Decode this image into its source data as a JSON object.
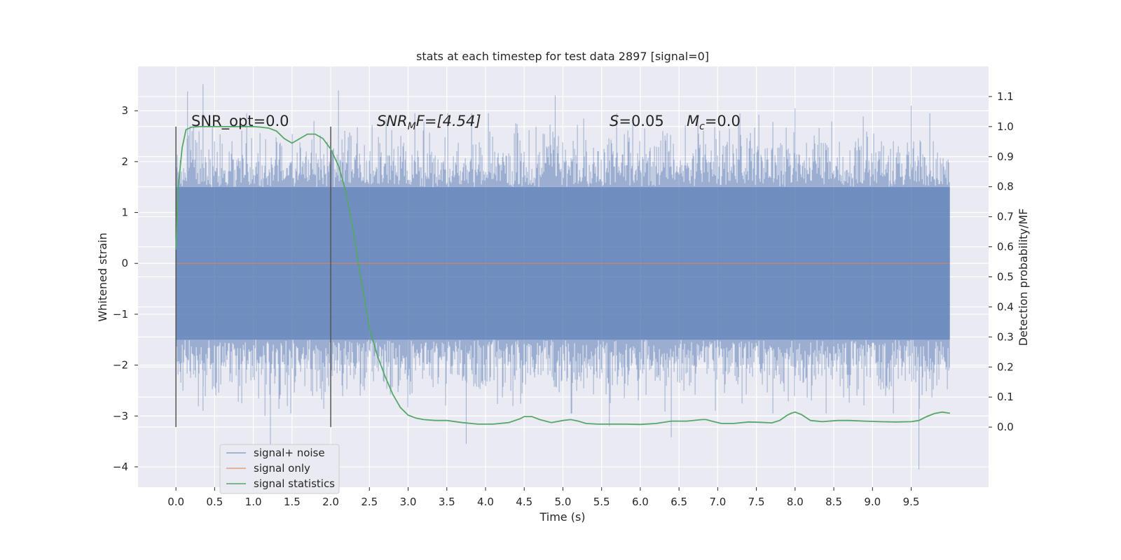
{
  "chart_data": {
    "type": "line",
    "title": "stats at each timestep for test data 2897 [signal=0]",
    "xlabel": "Time (s)",
    "ylabel_left": "Whitened strain",
    "ylabel_right": "Detection probability/MF",
    "x_ticks": [
      "0.0",
      "0.5",
      "1.0",
      "1.5",
      "2.0",
      "2.5",
      "3.0",
      "3.5",
      "4.0",
      "4.5",
      "5.0",
      "5.5",
      "6.0",
      "6.5",
      "7.0",
      "7.5",
      "8.0",
      "8.5",
      "9.0",
      "9.5"
    ],
    "y_left_ticks": [
      3,
      2,
      1,
      0,
      -1,
      -2,
      -3,
      -4
    ],
    "y_left_tick_labels": [
      "3",
      "2",
      "1",
      "0",
      "−1",
      "−2",
      "−3",
      "−4"
    ],
    "y_right_ticks": [
      1.1,
      1.0,
      0.9,
      0.8,
      0.7,
      0.6,
      0.5,
      0.4,
      0.3,
      0.2,
      0.1,
      0.0
    ],
    "y_right_tick_labels": [
      "1.1",
      "1.0",
      "0.9",
      "0.8",
      "0.7",
      "0.6",
      "0.5",
      "0.4",
      "0.3",
      "0.2",
      "0.1",
      "0.0"
    ],
    "xlim": [
      -0.49,
      10.5
    ],
    "ylim_left": [
      -4.4,
      3.87
    ],
    "ylim_right": [
      -0.2,
      1.2
    ],
    "grid": true,
    "legend_position": "lower-left",
    "colors": {
      "background": "#eaeaf2",
      "grid": "#ffffff",
      "signal_noise": "#4c72b0",
      "signal_only": "#dd8452",
      "statistics": "#55a868",
      "vline": "#555555"
    },
    "annotations": {
      "snr_opt": "SNR_opt=0.0",
      "snr_mf_italic": "SNR",
      "snr_mf_sub": "M",
      "snr_mf_rest": "F=[4.54]",
      "s_italic": "S",
      "s_rest": "=0.05",
      "mc_italic": "M",
      "mc_sub": "c",
      "mc_rest": "=0.0"
    },
    "vertical_lines_x": [
      0.0,
      2.0
    ],
    "series": [
      {
        "name": "signal+ noise",
        "kind": "noise",
        "x_range": [
          0.0,
          10.0
        ],
        "core_band": [
          -1.5,
          1.5
        ],
        "extremes": [
          {
            "x": 0.15,
            "y": 3.38
          },
          {
            "x": 0.35,
            "y": 3.52
          },
          {
            "x": 1.22,
            "y": -3.6
          },
          {
            "x": 2.1,
            "y": 3.4
          },
          {
            "x": 3.75,
            "y": -3.55
          },
          {
            "x": 4.9,
            "y": 3.3
          },
          {
            "x": 6.4,
            "y": -3.42
          },
          {
            "x": 8.0,
            "y": 3.05
          },
          {
            "x": 9.5,
            "y": 3.1
          },
          {
            "x": 9.6,
            "y": -4.05
          },
          {
            "x": 0.35,
            "y": -2.9
          },
          {
            "x": 1.15,
            "y": -3.0
          },
          {
            "x": 5.6,
            "y": -3.2
          }
        ]
      },
      {
        "name": "signal only",
        "kind": "flat",
        "x": [
          0.0,
          10.0
        ],
        "y": [
          0.0,
          0.0
        ]
      },
      {
        "name": "signal statistics",
        "kind": "line",
        "x": [
          0.0,
          0.03,
          0.08,
          0.13,
          0.2,
          0.3,
          0.5,
          0.8,
          1.0,
          1.1,
          1.2,
          1.3,
          1.4,
          1.5,
          1.6,
          1.7,
          1.8,
          1.9,
          2.0,
          2.1,
          2.2,
          2.3,
          2.4,
          2.5,
          2.6,
          2.7,
          2.8,
          2.9,
          3.0,
          3.1,
          3.2,
          3.35,
          3.5,
          3.7,
          3.9,
          4.1,
          4.3,
          4.45,
          4.5,
          4.6,
          4.7,
          4.85,
          5.0,
          5.1,
          5.2,
          5.3,
          5.45,
          5.6,
          5.8,
          6.0,
          6.2,
          6.4,
          6.6,
          6.8,
          6.85,
          6.95,
          7.05,
          7.2,
          7.4,
          7.55,
          7.7,
          7.8,
          7.9,
          7.95,
          8.0,
          8.08,
          8.2,
          8.35,
          8.55,
          8.7,
          8.9,
          9.1,
          9.3,
          9.5,
          9.6,
          9.7,
          9.8,
          9.9,
          9.95,
          10.0
        ],
        "y": [
          0.59,
          0.8,
          0.93,
          0.99,
          0.998,
          1.0,
          1.0,
          1.0,
          1.0,
          0.998,
          0.995,
          0.985,
          0.96,
          0.945,
          0.96,
          0.975,
          0.975,
          0.96,
          0.925,
          0.87,
          0.78,
          0.64,
          0.48,
          0.33,
          0.24,
          0.17,
          0.11,
          0.065,
          0.04,
          0.03,
          0.025,
          0.022,
          0.022,
          0.015,
          0.01,
          0.01,
          0.015,
          0.028,
          0.035,
          0.035,
          0.025,
          0.015,
          0.022,
          0.025,
          0.02,
          0.012,
          0.01,
          0.01,
          0.01,
          0.009,
          0.012,
          0.02,
          0.02,
          0.025,
          0.025,
          0.018,
          0.012,
          0.012,
          0.017,
          0.016,
          0.014,
          0.022,
          0.04,
          0.046,
          0.05,
          0.042,
          0.022,
          0.018,
          0.022,
          0.022,
          0.02,
          0.018,
          0.017,
          0.018,
          0.022,
          0.035,
          0.045,
          0.05,
          0.048,
          0.046
        ]
      }
    ]
  }
}
